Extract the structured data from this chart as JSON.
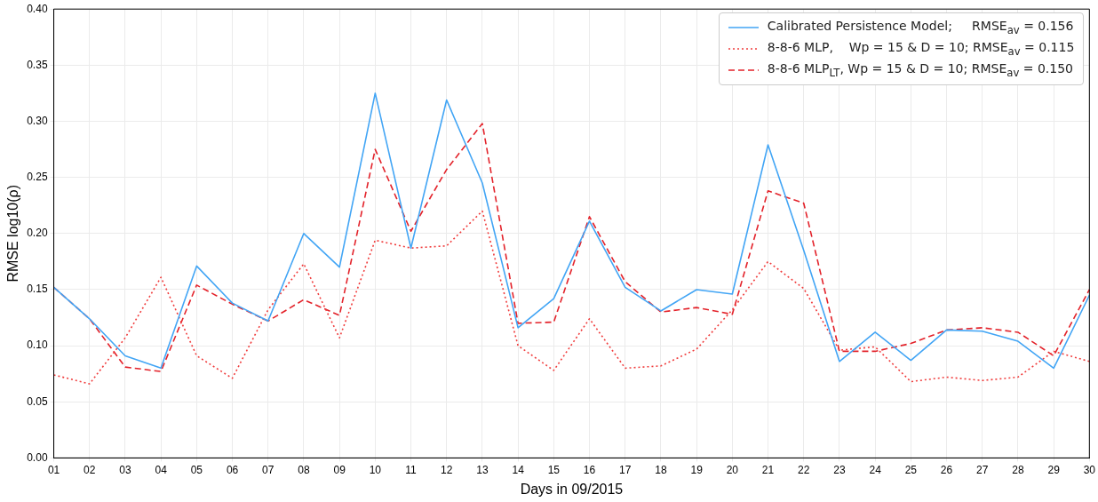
{
  "chart_data": {
    "type": "line",
    "xlabel": "Days in 09/2015",
    "ylabel": "RMSE log10(ρ)",
    "categories": [
      "01",
      "02",
      "03",
      "04",
      "05",
      "06",
      "07",
      "08",
      "09",
      "10",
      "11",
      "12",
      "13",
      "14",
      "15",
      "16",
      "17",
      "18",
      "19",
      "20",
      "21",
      "22",
      "23",
      "24",
      "25",
      "26",
      "27",
      "28",
      "29",
      "30"
    ],
    "series": [
      {
        "name": "Calibrated Persistence Model;     RMSE$_{av}$ = 0.156",
        "color": "#42a5f5",
        "line_style": "solid",
        "values": [
          0.152,
          0.124,
          0.091,
          0.08,
          0.171,
          0.138,
          0.122,
          0.2,
          0.17,
          0.325,
          0.187,
          0.319,
          0.245,
          0.116,
          0.142,
          0.211,
          0.152,
          0.131,
          0.15,
          0.146,
          0.279,
          0.185,
          0.086,
          0.112,
          0.087,
          0.114,
          0.113,
          0.104,
          0.08,
          0.145
        ]
      },
      {
        "name": "8-8-6 MLP,    Wp = 15 & D = 10; RMSE$_{av}$ = 0.115",
        "color": "#f03c3c",
        "line_style": "dotted",
        "values": [
          0.074,
          0.066,
          0.107,
          0.161,
          0.091,
          0.071,
          0.132,
          0.173,
          0.107,
          0.194,
          0.187,
          0.189,
          0.22,
          0.1,
          0.078,
          0.124,
          0.08,
          0.082,
          0.097,
          0.132,
          0.175,
          0.151,
          0.096,
          0.099,
          0.068,
          0.072,
          0.069,
          0.072,
          0.095,
          0.086
        ]
      },
      {
        "name": "8-8-6 MLP$_{LT}$, Wp = 15 & D = 10; RMSE$_{av}$ = 0.150",
        "color": "#e3222a",
        "line_style": "dashed",
        "values": [
          0.152,
          0.124,
          0.081,
          0.077,
          0.154,
          0.137,
          0.122,
          0.141,
          0.127,
          0.275,
          0.202,
          0.257,
          0.298,
          0.12,
          0.121,
          0.215,
          0.157,
          0.13,
          0.134,
          0.128,
          0.238,
          0.227,
          0.095,
          0.095,
          0.102,
          0.114,
          0.116,
          0.112,
          0.091,
          0.15
        ]
      }
    ],
    "ylim": [
      0,
      0.4
    ],
    "yticks": [
      {
        "value": 0,
        "label": "0.00"
      },
      {
        "value": 0.05,
        "label": "0.05"
      },
      {
        "value": 0.1,
        "label": "0.10"
      },
      {
        "value": 0.15,
        "label": "0.15"
      },
      {
        "value": 0.2,
        "label": "0.20"
      },
      {
        "value": 0.25,
        "label": "0.25"
      },
      {
        "value": 0.3,
        "label": "0.30"
      },
      {
        "value": 0.35,
        "label": "0.35"
      },
      {
        "value": 0.4,
        "label": "0.40"
      }
    ],
    "grid": true,
    "legend": "top right",
    "marker": "none"
  }
}
